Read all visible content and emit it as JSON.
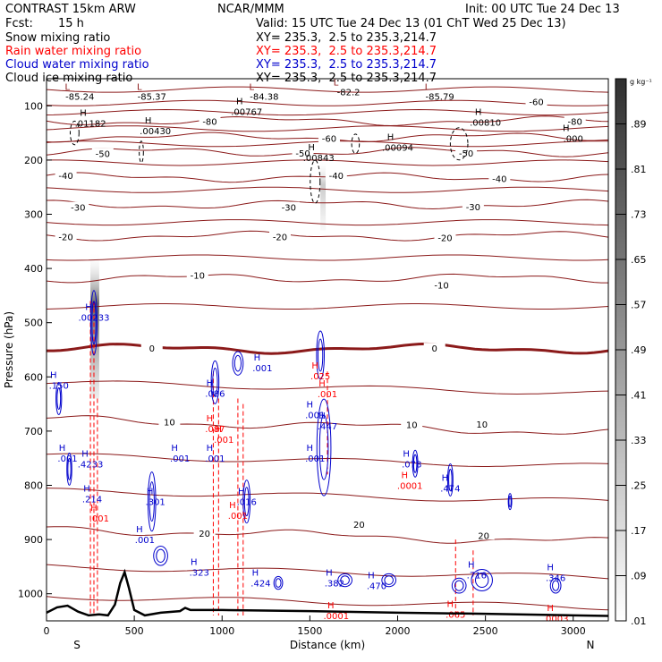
{
  "header": {
    "model": "CONTRAST 15km ARW",
    "org": "NCAR/MMM",
    "init": "Init: 00 UTC Tue 24 Dec 13",
    "fcst_label": "Fcst:",
    "fcst_value": "15 h",
    "valid": "Valid: 15 UTC Tue 24 Dec 13 (01 ChT Wed 25 Dec 13)",
    "lines": [
      {
        "label": "Snow mixing ratio",
        "xy": "XY= 235.3,  2.5 to 235.3,214.7",
        "color": "#000000"
      },
      {
        "label": "Rain water mixing ratio",
        "xy": "XY= 235.3,  2.5 to 235.3,214.7",
        "color": "#ff0000"
      },
      {
        "label": "Cloud water mixing ratio",
        "xy": "XY= 235.3,  2.5 to 235.3,214.7",
        "color": "#0000cc"
      },
      {
        "label": "Cloud ice mixing ratio",
        "xy": "XY= 235.3,  2.5 to 235.3,214.7",
        "color": "#000000"
      }
    ]
  },
  "chart_data": {
    "type": "cross-section contour",
    "xlabel": "Distance (km)",
    "ylabel": "Pressure (hPa)",
    "xlim": [
      0,
      3200
    ],
    "ylim": [
      1050,
      50
    ],
    "x_ticks": [
      0,
      500,
      1000,
      1500,
      2000,
      2500,
      3000
    ],
    "y_ticks": [
      100,
      200,
      300,
      400,
      500,
      600,
      700,
      800,
      900,
      1000
    ],
    "x_end_labels": {
      "left": "S",
      "right": "N"
    },
    "temperature_isotherms": [
      {
        "label": "-80",
        "p": 128
      },
      {
        "label": "-60",
        "p": 158
      },
      {
        "label": "-50",
        "p": 185
      },
      {
        "label": "-40",
        "p": 232
      },
      {
        "label": "-30",
        "p": 282
      },
      {
        "label": "-20",
        "p": 340
      },
      {
        "label": "-10",
        "p": 418
      },
      {
        "label": "0",
        "p": 548
      },
      {
        "label": "10",
        "p": 678
      },
      {
        "label": "20",
        "p": 880
      }
    ],
    "contour_labels": [
      {
        "text": "-80",
        "x": 930,
        "p": 128
      },
      {
        "text": "-80",
        "x": 3010,
        "p": 128
      },
      {
        "text": "-60",
        "x": 2790,
        "p": 92
      },
      {
        "text": "-60",
        "x": 1610,
        "p": 160
      },
      {
        "text": "-50",
        "x": 320,
        "p": 188
      },
      {
        "text": "-50",
        "x": 1460,
        "p": 187
      },
      {
        "text": "-50",
        "x": 2390,
        "p": 187
      },
      {
        "text": "-40",
        "x": 110,
        "p": 228
      },
      {
        "text": "-40",
        "x": 1650,
        "p": 228
      },
      {
        "text": "-40",
        "x": 2580,
        "p": 234
      },
      {
        "text": "-30",
        "x": 180,
        "p": 287
      },
      {
        "text": "-30",
        "x": 1380,
        "p": 287
      },
      {
        "text": "-30",
        "x": 2430,
        "p": 286
      },
      {
        "text": "-20",
        "x": 110,
        "p": 341
      },
      {
        "text": "-20",
        "x": 1330,
        "p": 341
      },
      {
        "text": "-20",
        "x": 2270,
        "p": 343
      },
      {
        "text": "-10",
        "x": 860,
        "p": 412
      },
      {
        "text": "-10",
        "x": 2250,
        "p": 430
      },
      {
        "text": "0",
        "x": 600,
        "p": 547
      },
      {
        "text": "0",
        "x": 2210,
        "p": 547
      },
      {
        "text": "10",
        "x": 700,
        "p": 683
      },
      {
        "text": "10",
        "x": 2080,
        "p": 688
      },
      {
        "text": "10",
        "x": 2480,
        "p": 687
      },
      {
        "text": "20",
        "x": 900,
        "p": 888
      },
      {
        "text": "20",
        "x": 1780,
        "p": 872
      },
      {
        "text": "20",
        "x": 2490,
        "p": 892
      }
    ],
    "low_markers": [
      {
        "text": "-85.24",
        "x": 190,
        "p": 82
      },
      {
        "text": "-85.37",
        "x": 600,
        "p": 82
      },
      {
        "text": "-84.38",
        "x": 1240,
        "p": 82
      },
      {
        "text": "-82.2",
        "x": 1720,
        "p": 74
      },
      {
        "text": "-85.79",
        "x": 2240,
        "p": 82
      }
    ],
    "ice_maxima": [
      {
        "text": ".01182",
        "x": 250,
        "p": 132
      },
      {
        "text": ".00430",
        "x": 620,
        "p": 146
      },
      {
        "text": ".00767",
        "x": 1140,
        "p": 110
      },
      {
        "text": ".00843",
        "x": 1550,
        "p": 195
      },
      {
        "text": ".00094",
        "x": 2000,
        "p": 176
      },
      {
        "text": ".00810",
        "x": 2500,
        "p": 130
      },
      {
        "text": ".000",
        "x": 3000,
        "p": 160
      }
    ],
    "cloud_water_maxima": [
      {
        "text": ".150",
        "x": 70,
        "p": 615
      },
      {
        "text": ".00233",
        "x": 270,
        "p": 490
      },
      {
        "text": ".001",
        "x": 120,
        "p": 750
      },
      {
        "text": ".4233",
        "x": 250,
        "p": 760
      },
      {
        "text": ".214",
        "x": 260,
        "p": 825
      },
      {
        "text": ".301",
        "x": 620,
        "p": 830
      },
      {
        "text": ".001",
        "x": 560,
        "p": 900
      },
      {
        "text": ".001",
        "x": 760,
        "p": 750
      },
      {
        "text": ".323",
        "x": 870,
        "p": 960
      },
      {
        "text": ".086",
        "x": 960,
        "p": 630
      },
      {
        "text": ".001",
        "x": 960,
        "p": 750
      },
      {
        "text": ".001",
        "x": 1230,
        "p": 583
      },
      {
        "text": ".016",
        "x": 1140,
        "p": 830
      },
      {
        "text": ".424",
        "x": 1220,
        "p": 980
      },
      {
        "text": ".001",
        "x": 1530,
        "p": 670
      },
      {
        "text": ".447",
        "x": 1600,
        "p": 690
      },
      {
        "text": ".001",
        "x": 1530,
        "p": 750
      },
      {
        "text": ".382",
        "x": 1640,
        "p": 980
      },
      {
        "text": ".470",
        "x": 1880,
        "p": 985
      },
      {
        "text": ".078",
        "x": 2080,
        "p": 760
      },
      {
        "text": ".474",
        "x": 2300,
        "p": 805
      },
      {
        "text": ".716",
        "x": 2450,
        "p": 965
      },
      {
        "text": ".346",
        "x": 2900,
        "p": 970
      }
    ],
    "rain_maxima": [
      {
        "text": ".025",
        "x": 1560,
        "p": 598
      },
      {
        "text": ".001",
        "x": 1600,
        "p": 631
      },
      {
        "text": ".087",
        "x": 960,
        "p": 695
      },
      {
        "text": ".001",
        "x": 1010,
        "p": 715
      },
      {
        "text": ".001",
        "x": 300,
        "p": 860
      },
      {
        "text": ".001",
        "x": 1090,
        "p": 855
      },
      {
        "text": ".0001",
        "x": 2070,
        "p": 800
      },
      {
        "text": ".0001",
        "x": 1650,
        "p": 1040
      },
      {
        "text": ".065",
        "x": 2330,
        "p": 1038
      },
      {
        "text": ".0003",
        "x": 2900,
        "p": 1045
      }
    ],
    "colorbar": {
      "unit": "g kg⁻¹",
      "labels": [
        ".01",
        ".09",
        ".17",
        ".25",
        ".33",
        ".41",
        ".49",
        ".57",
        ".65",
        ".73",
        ".81",
        ".89"
      ],
      "min": 0.01,
      "max": 0.97
    },
    "terrain": [
      [
        0,
        1035
      ],
      [
        60,
        1025
      ],
      [
        120,
        1022
      ],
      [
        180,
        1033
      ],
      [
        240,
        1040
      ],
      [
        300,
        1038
      ],
      [
        350,
        1040
      ],
      [
        390,
        1020
      ],
      [
        420,
        980
      ],
      [
        445,
        960
      ],
      [
        470,
        990
      ],
      [
        500,
        1030
      ],
      [
        560,
        1040
      ],
      [
        650,
        1035
      ],
      [
        760,
        1032
      ],
      [
        790,
        1026
      ],
      [
        820,
        1030
      ],
      [
        1000,
        1030
      ],
      [
        1500,
        1032
      ],
      [
        2000,
        1035
      ],
      [
        2500,
        1037
      ],
      [
        3000,
        1040
      ],
      [
        3200,
        1041
      ]
    ]
  }
}
